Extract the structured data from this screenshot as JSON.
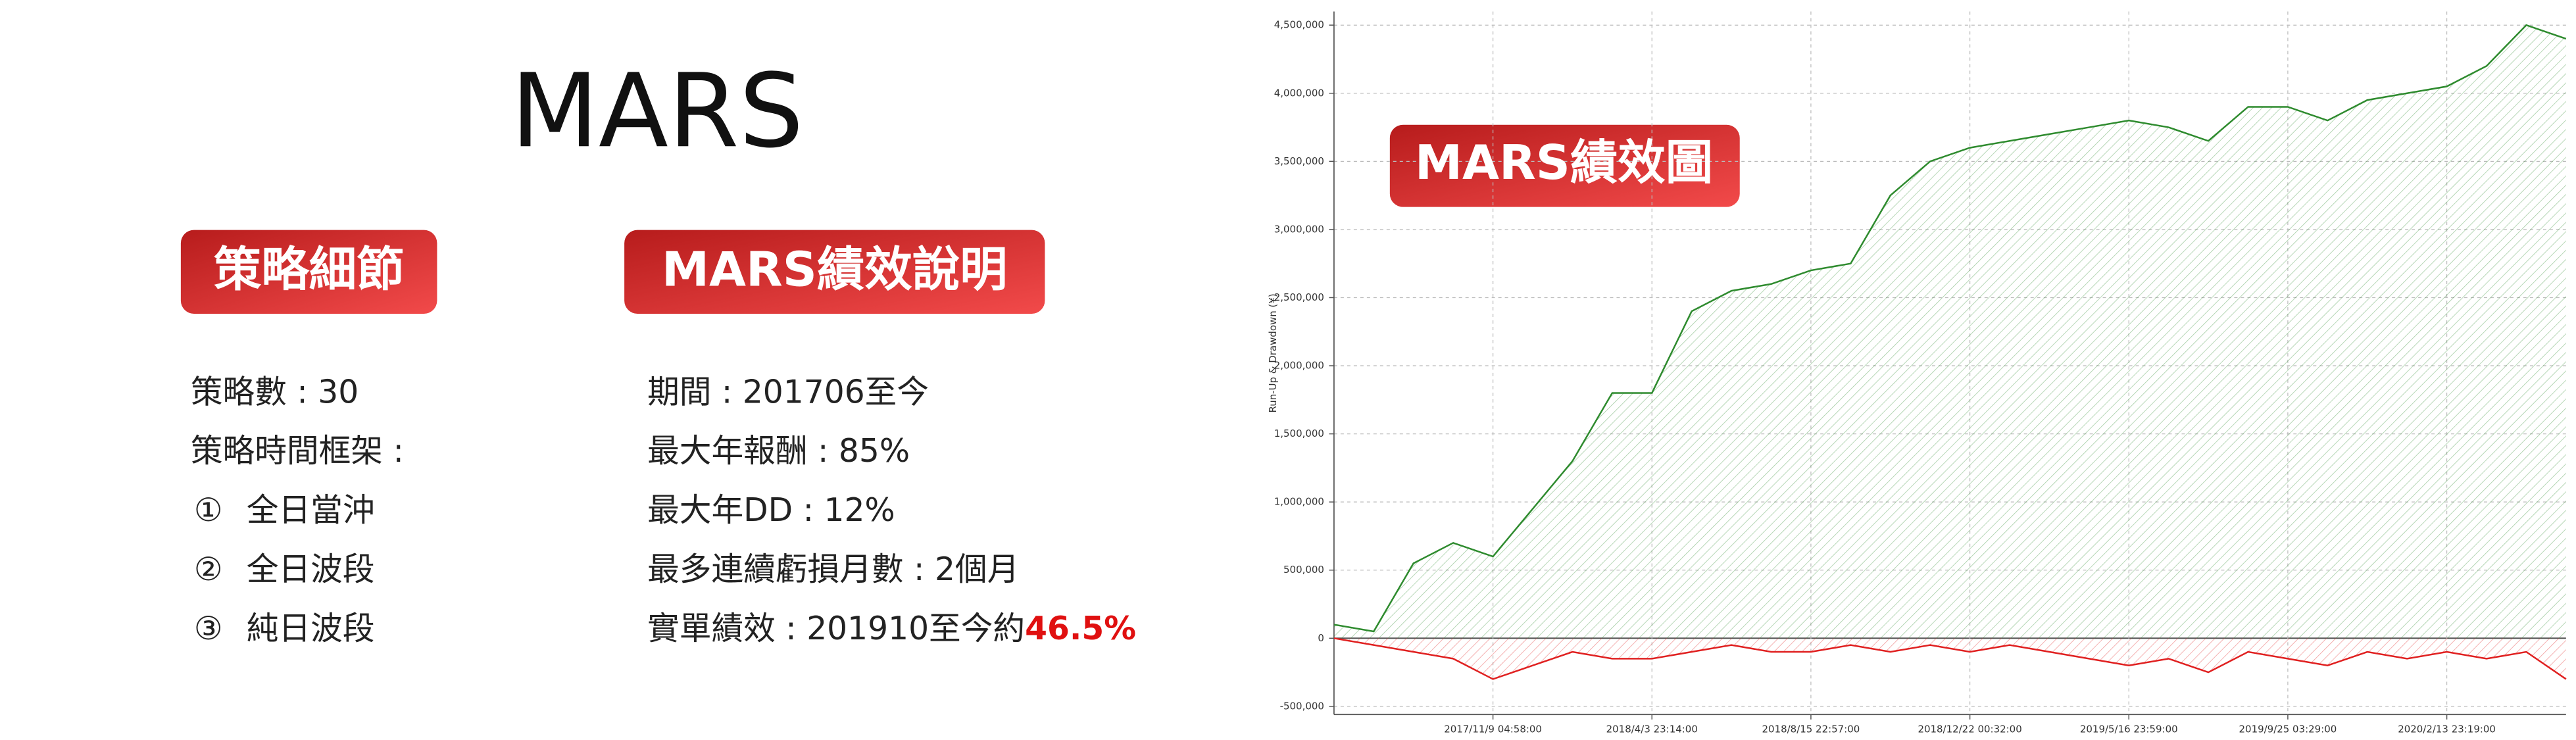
{
  "title": "MARS",
  "sections": [
    {
      "badge": "策略細節",
      "items": [
        {
          "text": "策略數 : 30"
        },
        {
          "text": "策略時間框架 :"
        },
        {
          "marker": "①",
          "text": "全日當沖"
        },
        {
          "marker": "②",
          "text": "全日波段"
        },
        {
          "marker": "③",
          "text": "純日波段"
        }
      ]
    },
    {
      "badge": "MARS績效說明",
      "items": [
        {
          "text": "期間 : 201706至今"
        },
        {
          "text": "最大年報酬 : 85%"
        },
        {
          "text": "最大年DD : 12%"
        },
        {
          "text": "最多連續虧損月數 : 2個月"
        },
        {
          "text": "實單績效 : 201910至今約",
          "highlight": "46.5%"
        }
      ]
    }
  ],
  "chart_badge": "MARS績效圖",
  "chart_data": {
    "type": "area",
    "y_label": "Run-Up & Drawdown (¥)",
    "categories": [
      null,
      null,
      null,
      null,
      "2017/11/9 04:58:00",
      null,
      null,
      null,
      "2018/4/3 23:14:00",
      null,
      null,
      null,
      "2018/8/15 22:57:00",
      null,
      null,
      null,
      "2018/12/22 00:32:00",
      null,
      null,
      null,
      "2019/5/16 23:59:00",
      null,
      null,
      null,
      "2019/9/25 03:29:00",
      null,
      null,
      null,
      "2020/2/13 23:19:00",
      null,
      null,
      null
    ],
    "series": [
      {
        "name": "Run-Up",
        "color": "#2e8b2e",
        "values": [
          100000,
          50000,
          550000,
          700000,
          600000,
          950000,
          1300000,
          1800000,
          1800000,
          2400000,
          2550000,
          2600000,
          2700000,
          2750000,
          3250000,
          3500000,
          3600000,
          3650000,
          3700000,
          3750000,
          3800000,
          3750000,
          3650000,
          3900000,
          3900000,
          3800000,
          3950000,
          4000000,
          4050000,
          4200000,
          4500000,
          4400000
        ]
      },
      {
        "name": "Drawdown",
        "color": "#e02020",
        "values": [
          0,
          -50000,
          -100000,
          -150000,
          -300000,
          -200000,
          -100000,
          -150000,
          -150000,
          -100000,
          -50000,
          -100000,
          -100000,
          -50000,
          -100000,
          -50000,
          -100000,
          -50000,
          -100000,
          -150000,
          -200000,
          -150000,
          -250000,
          -100000,
          -150000,
          -200000,
          -100000,
          -150000,
          -100000,
          -150000,
          -100000,
          -300000
        ]
      }
    ],
    "ylim": [
      -560000,
      4600000
    ],
    "yticks": [
      {
        "value": -500000,
        "label": "-500,000"
      },
      0,
      {
        "value": 500000,
        "label": "500,000"
      },
      {
        "value": 1000000,
        "label": "1,000,000"
      },
      {
        "value": 1500000,
        "label": "1,500,000"
      },
      {
        "value": 2000000,
        "label": "2,000,000"
      },
      {
        "value": 2500000,
        "label": "2,500,000"
      },
      {
        "value": 3000000,
        "label": "3,000,000"
      },
      {
        "value": 3500000,
        "label": "3,500,000"
      },
      {
        "value": 4000000,
        "label": "4,000,000"
      },
      {
        "value": 4500000,
        "label": "4,500,000"
      }
    ],
    "grid": true
  }
}
